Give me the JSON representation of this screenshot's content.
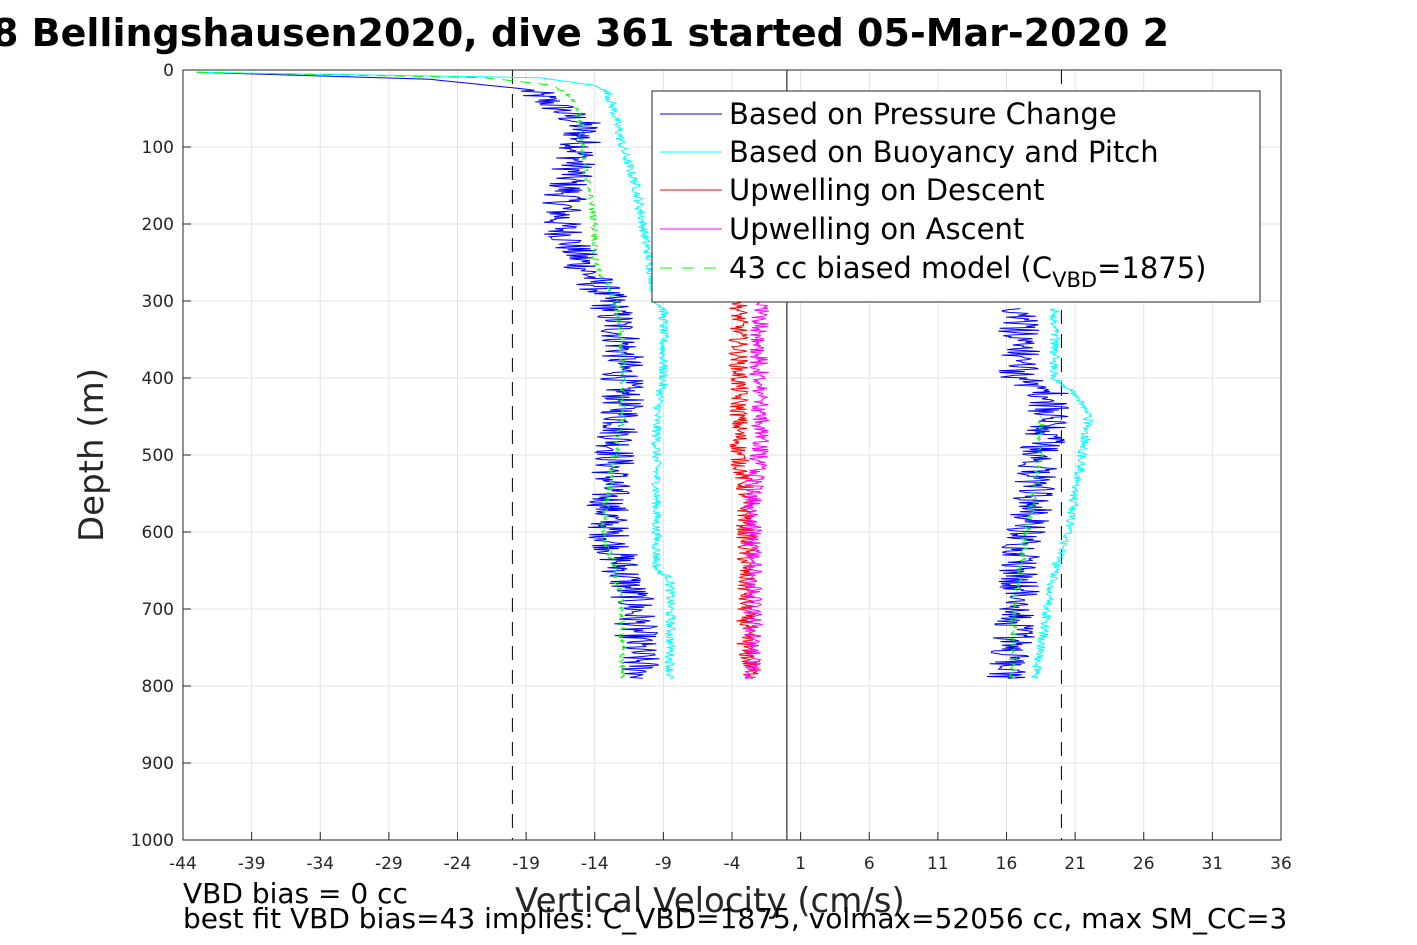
{
  "chart_data": {
    "type": "line",
    "title": "8 Bellingshausen2020, dive 361 started 05-Mar-2020 2",
    "xlabel": "Vertical Velocity (cm/s)",
    "ylabel": "Depth (m)",
    "xlim": [
      -44,
      36
    ],
    "ylim": [
      0,
      1000
    ],
    "y_reversed": true,
    "grid": true,
    "legend_position": "top-right",
    "x_ticks": [
      -44,
      -39,
      -34,
      -29,
      -24,
      -19,
      -14,
      -9,
      -4,
      1,
      6,
      11,
      16,
      21,
      26,
      31,
      36
    ],
    "y_ticks": [
      0,
      100,
      200,
      300,
      400,
      500,
      600,
      700,
      800,
      900,
      1000
    ],
    "vertical_lines": [
      {
        "x": -20,
        "style": "dashed",
        "color": "#000000"
      },
      {
        "x": 0,
        "style": "solid",
        "color": "#000000"
      },
      {
        "x": 20,
        "style": "dashed",
        "color": "#000000"
      }
    ],
    "series": [
      {
        "name": "Based on Pressure Change",
        "color": "#0000ff",
        "dash": "solid",
        "noise": 1.6,
        "profiles": [
          {
            "depth": [
              3,
              12,
              25,
              45,
              70,
              100,
              150,
              200,
              250,
              300,
              350,
              400,
              450,
              500,
              550,
              600,
              650,
              700,
              750,
              790
            ],
            "vel": [
              -43,
              -26,
              -19,
              -17,
              -15,
              -15,
              -16,
              -16.5,
              -15,
              -13,
              -12,
              -12,
              -12,
              -12.5,
              -13,
              -13,
              -12,
              -11,
              -11,
              -10.5
            ]
          },
          {
            "depth": [
              790,
              770,
              740,
              700,
              650,
              600,
              550,
              500,
              450,
              420,
              400,
              350,
              310
            ],
            "vel": [
              16,
              16,
              16.5,
              17,
              17,
              17.5,
              18,
              18.5,
              19,
              19,
              17,
              17,
              17
            ]
          }
        ]
      },
      {
        "name": "Based on Buoyancy and Pitch",
        "color": "#00ffff",
        "dash": "solid",
        "noise": 0.35,
        "profiles": [
          {
            "depth": [
              3,
              10,
              20,
              30,
              60,
              100,
              150,
              200,
              250,
              300,
              310,
              400,
              450,
              500,
              600,
              650,
              660,
              700,
              750,
              790
            ],
            "vel": [
              -43,
              -18,
              -14,
              -13,
              -12.5,
              -12,
              -11,
              -10.5,
              -10,
              -9.5,
              -9,
              -9,
              -9.5,
              -9.5,
              -9.5,
              -9.5,
              -8.5,
              -8.5,
              -8.5,
              -8.5
            ]
          },
          {
            "depth": [
              790,
              750,
              700,
              650,
              600,
              550,
              500,
              450,
              420,
              400,
              350,
              310
            ],
            "vel": [
              18,
              18.5,
              19,
              19.5,
              20.5,
              21,
              21.5,
              22,
              21,
              19.5,
              19.5,
              19.5
            ]
          }
        ]
      },
      {
        "name": "Upwelling on Descent",
        "color": "#ff0000",
        "dash": "solid",
        "noise": 0.7,
        "profiles": [
          {
            "depth": [
              300,
              350,
              400,
              450,
              500,
              550,
              600,
              650,
              700,
              750,
              790
            ],
            "vel": [
              -3.5,
              -3.5,
              -3.5,
              -3.5,
              -3.5,
              -3,
              -3,
              -3,
              -3,
              -3,
              -2.5
            ]
          }
        ]
      },
      {
        "name": "Upwelling on Ascent",
        "color": "#ff00ff",
        "dash": "solid",
        "noise": 0.7,
        "profiles": [
          {
            "depth": [
              790,
              750,
              700,
              650,
              600,
              550,
              500,
              450,
              400,
              350,
              300
            ],
            "vel": [
              -2.5,
              -2.5,
              -2.5,
              -2.5,
              -2.5,
              -2.5,
              -2,
              -2,
              -2,
              -2,
              -2
            ]
          }
        ]
      },
      {
        "name": "43 cc biased model (CVBD=1875)",
        "color": "#00ff00",
        "dash": "dashed",
        "noise": 0.25,
        "profiles": [
          {
            "depth": [
              3,
              10,
              20,
              40,
              70,
              100,
              150,
              200,
              250,
              300,
              350,
              400,
              450,
              500,
              550,
              600,
              650,
              700,
              750,
              790
            ],
            "vel": [
              -43,
              -22,
              -17,
              -15.5,
              -15,
              -15,
              -14.5,
              -14,
              -14,
              -12.5,
              -12,
              -12,
              -12,
              -12.5,
              -13,
              -13.5,
              -12.5,
              -12,
              -12,
              -12
            ]
          },
          {
            "depth": [
              790,
              750,
              700,
              650,
              600,
              550,
              500,
              450
            ],
            "vel": [
              16.5,
              16.5,
              16.5,
              17,
              17.5,
              18,
              18.5,
              18.5
            ]
          }
        ]
      }
    ]
  },
  "legend": {
    "entries": [
      {
        "label": "Based on Pressure Change",
        "color": "#0000ff",
        "dash": "solid"
      },
      {
        "label": "Based on Buoyancy and Pitch",
        "color": "#00ffff",
        "dash": "solid"
      },
      {
        "label": "Upwelling on Descent",
        "color": "#ff0000",
        "dash": "solid"
      },
      {
        "label": "Upwelling on Ascent",
        "color": "#ff00ff",
        "dash": "solid"
      },
      {
        "label_main": "43 cc biased model (C",
        "label_sub": "VBD",
        "label_end": "=1875)",
        "color": "#00ff00",
        "dash": "dashed"
      }
    ]
  },
  "footer": {
    "line1": "VBD bias = 0 cc",
    "line2": "best fit VBD bias=43 implies: C_VBD=1875, volmax=52056 cc, max SM_CC=3"
  }
}
